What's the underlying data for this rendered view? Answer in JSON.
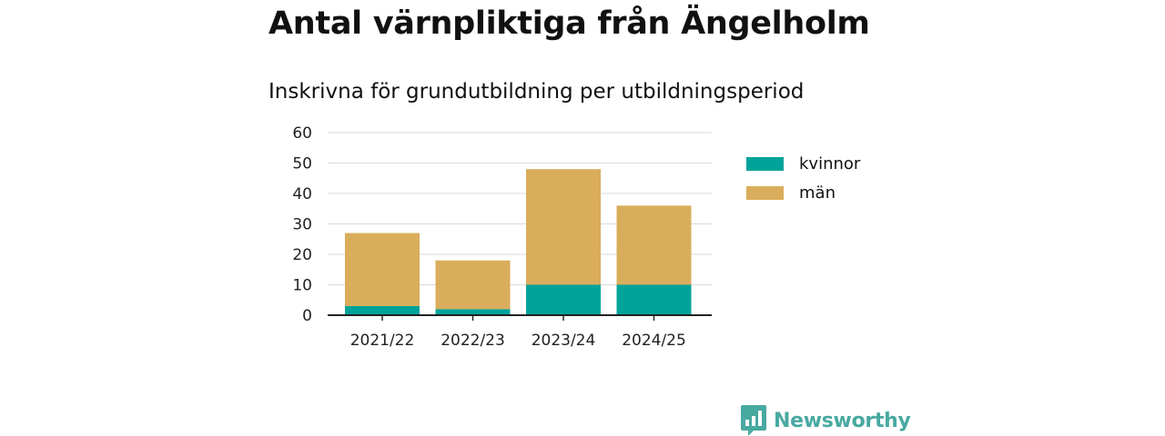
{
  "title": "Antal värnpliktiga från Ängelholm",
  "subtitle": "Inskrivna för grundutbildning per utbildningsperiod",
  "brand": {
    "name": "Newsworthy",
    "icon": "newsworthy-logo-icon",
    "color": "#48a9a0"
  },
  "chart_data": {
    "type": "bar",
    "stacked": true,
    "categories": [
      "2021/22",
      "2022/23",
      "2023/24",
      "2024/25"
    ],
    "series": [
      {
        "name": "kvinnor",
        "color": "#00a39a",
        "values": [
          3,
          2,
          10,
          10
        ]
      },
      {
        "name": "män",
        "color": "#d9ad5b",
        "values": [
          24,
          16,
          38,
          26
        ]
      }
    ],
    "ylim": [
      0,
      60
    ],
    "yticks": [
      0,
      10,
      20,
      30,
      40,
      50,
      60
    ],
    "grid": true,
    "legend": "right"
  }
}
